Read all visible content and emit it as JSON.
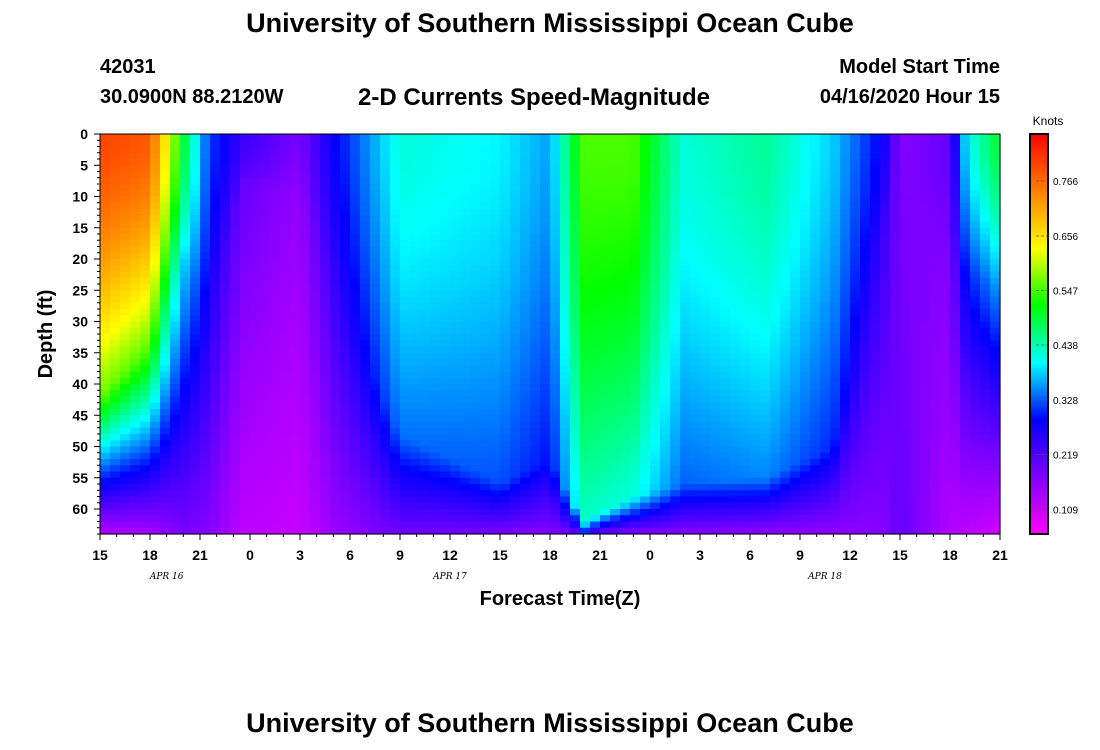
{
  "header": {
    "title": "University of Southern Mississippi Ocean Cube",
    "station_id": "42031",
    "location": "30.0900N 88.2120W",
    "plot_title": "2-D Currents Speed-Magnitude",
    "model_start_label": "Model Start Time",
    "model_start_value": "04/16/2020 Hour 15"
  },
  "footer": {
    "title": "University of Southern Mississippi Ocean Cube"
  },
  "colors": {
    "ramp": [
      "#ff00ff",
      "#8000ff",
      "#0000ff",
      "#00ffff",
      "#00ff00",
      "#ffff00",
      "#ff8000",
      "#ff0000"
    ]
  },
  "chart_data": {
    "type": "heatmap",
    "title": "2-D Currents Speed-Magnitude",
    "xlabel": "Forecast Time(Z)",
    "ylabel": "Depth (ft)",
    "units": "Knots",
    "x_tick_labels": [
      "15",
      "18",
      "21",
      "0",
      "3",
      "6",
      "9",
      "12",
      "15",
      "18",
      "21",
      "0",
      "3",
      "6",
      "9",
      "12",
      "15",
      "18",
      "21"
    ],
    "x_range_hours": [
      0,
      54
    ],
    "date_labels": [
      {
        "label": "APR 16",
        "hour": 4
      },
      {
        "label": "APR 17",
        "hour": 21
      },
      {
        "label": "APR 18",
        "hour": 43.5
      }
    ],
    "y_tick_labels": [
      "0",
      "5",
      "10",
      "15",
      "20",
      "25",
      "30",
      "35",
      "40",
      "45",
      "50",
      "55",
      "60"
    ],
    "y_range_ft": [
      0,
      64
    ],
    "colorbar_ticks": [
      "0.766",
      "0.656",
      "0.547",
      "0.438",
      "0.328",
      "0.219",
      "0.109"
    ],
    "colorbar_values": [
      0.766,
      0.656,
      0.547,
      0.438,
      0.328,
      0.219,
      0.109
    ],
    "colorbar_range": [
      0.06,
      0.86
    ],
    "speed_profile_keyframes": [
      {
        "hour": 0,
        "surface": 0.8,
        "bottom_depth": 42,
        "bottom": 0.13
      },
      {
        "hour": 3,
        "surface": 0.78,
        "bottom_depth": 34,
        "bottom": 0.14
      },
      {
        "hour": 5,
        "surface": 0.5,
        "bottom_depth": 20,
        "bottom": 0.18
      },
      {
        "hour": 6.5,
        "surface": 0.32,
        "bottom_depth": 28,
        "bottom": 0.17
      },
      {
        "hour": 8.5,
        "surface": 0.24,
        "bottom_depth": 8,
        "bottom": 0.12
      },
      {
        "hour": 12,
        "surface": 0.18,
        "bottom_depth": 10,
        "bottom": 0.11
      },
      {
        "hour": 14,
        "surface": 0.28,
        "bottom_depth": 25,
        "bottom": 0.15
      },
      {
        "hour": 18,
        "surface": 0.42,
        "bottom_depth": 48,
        "bottom": 0.19
      },
      {
        "hour": 24,
        "surface": 0.4,
        "bottom_depth": 56,
        "bottom": 0.18
      },
      {
        "hour": 27,
        "surface": 0.36,
        "bottom_depth": 52,
        "bottom": 0.17
      },
      {
        "hour": 29,
        "surface": 0.55,
        "bottom_depth": 62,
        "bottom": 0.2
      },
      {
        "hour": 32,
        "surface": 0.55,
        "bottom_depth": 58,
        "bottom": 0.17
      },
      {
        "hour": 35,
        "surface": 0.42,
        "bottom_depth": 56,
        "bottom": 0.17
      },
      {
        "hour": 40,
        "surface": 0.45,
        "bottom_depth": 55,
        "bottom": 0.16
      },
      {
        "hour": 44,
        "surface": 0.38,
        "bottom_depth": 50,
        "bottom": 0.16
      },
      {
        "hour": 47,
        "surface": 0.28,
        "bottom_depth": 15,
        "bottom": 0.17
      },
      {
        "hour": 48,
        "surface": 0.17,
        "bottom_depth": 8,
        "bottom": 0.2
      },
      {
        "hour": 51,
        "surface": 0.2,
        "bottom_depth": 20,
        "bottom": 0.13
      },
      {
        "hour": 52,
        "surface": 0.4,
        "bottom_depth": 22,
        "bottom": 0.12
      },
      {
        "hour": 54,
        "surface": 0.5,
        "bottom_depth": 25,
        "bottom": 0.1
      }
    ]
  }
}
